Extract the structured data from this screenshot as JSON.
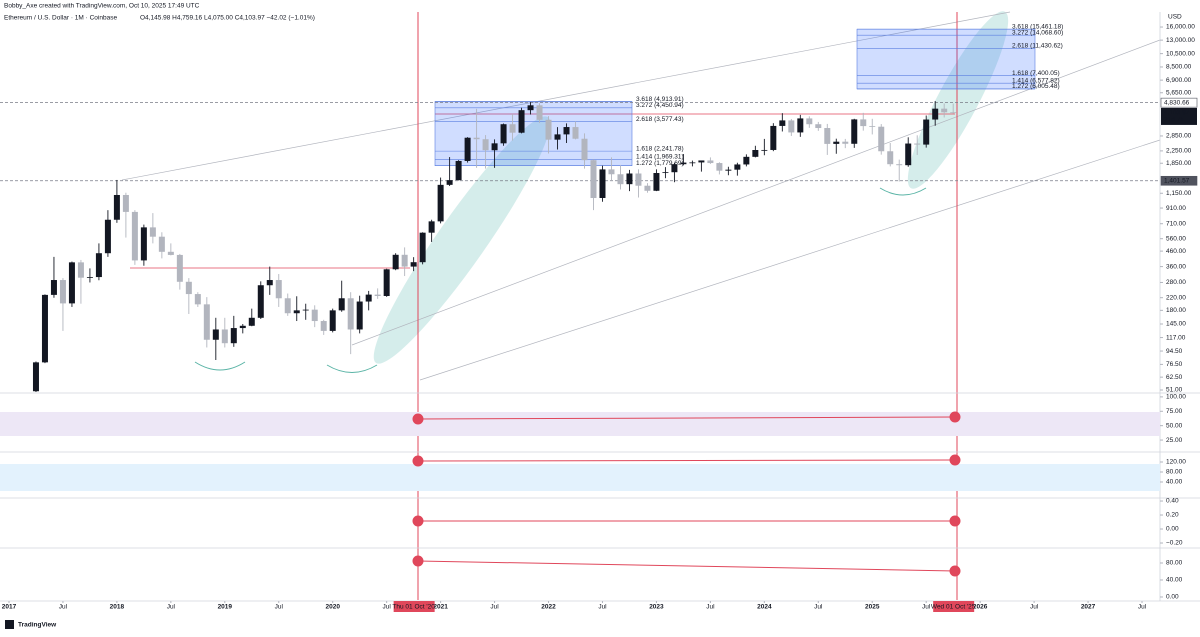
{
  "credit": "Bobby_Axe created with TradingView.com, Oct 10, 2025 17:49 UTC",
  "footer": "TradingView",
  "chart_data": {
    "type": "candlestick",
    "title": "Ethereum / U.S. Dollar · 1M · Coinbase",
    "subtitle": "O4,145.98 H4,759.16 L4,075.00 C4,103.97 −42.02 (−1.01%)",
    "y_unit": "USD",
    "log_scale": true,
    "up_color": "#131722",
    "down_color": "#b2b5be",
    "x": [
      "2017-04",
      "2017-05",
      "2017-06",
      "2017-07",
      "2017-08",
      "2017-09",
      "2017-10",
      "2017-11",
      "2017-12",
      "2018-01",
      "2018-02",
      "2018-03",
      "2018-04",
      "2018-05",
      "2018-06",
      "2018-07",
      "2018-08",
      "2018-09",
      "2018-10",
      "2018-11",
      "2018-12",
      "2019-01",
      "2019-02",
      "2019-03",
      "2019-04",
      "2019-05",
      "2019-06",
      "2019-07",
      "2019-08",
      "2019-09",
      "2019-10",
      "2019-11",
      "2019-12",
      "2020-01",
      "2020-02",
      "2020-03",
      "2020-04",
      "2020-05",
      "2020-06",
      "2020-07",
      "2020-08",
      "2020-09",
      "2020-10",
      "2020-11",
      "2020-12",
      "2021-01",
      "2021-02",
      "2021-03",
      "2021-04",
      "2021-05",
      "2021-06",
      "2021-07",
      "2021-08",
      "2021-09",
      "2021-10",
      "2021-11",
      "2021-12",
      "2022-01",
      "2022-02",
      "2022-03",
      "2022-04",
      "2022-05",
      "2022-06",
      "2022-07",
      "2022-08",
      "2022-09",
      "2022-10",
      "2022-11",
      "2022-12",
      "2023-01",
      "2023-02",
      "2023-03",
      "2023-04",
      "2023-05",
      "2023-06",
      "2023-07",
      "2023-08",
      "2023-09",
      "2023-10",
      "2023-11",
      "2023-12",
      "2024-01",
      "2024-02",
      "2024-03",
      "2024-04",
      "2024-05",
      "2024-06",
      "2024-07",
      "2024-08",
      "2024-09",
      "2024-10",
      "2024-11",
      "2024-12",
      "2025-01",
      "2025-02",
      "2025-03",
      "2025-04",
      "2025-05",
      "2025-06",
      "2025-07",
      "2025-08",
      "2025-09",
      "2025-10"
    ],
    "open": [
      50,
      79,
      230,
      291,
      201,
      385,
      302,
      305,
      445,
      756,
      1119,
      856,
      397,
      670,
      578,
      455,
      433,
      283,
      233,
      198,
      113,
      133,
      107,
      136,
      141,
      160,
      268,
      291,
      218,
      172,
      180,
      182,
      152,
      130,
      180,
      218,
      133,
      207,
      231,
      226,
      345,
      434,
      360,
      386,
      616,
      737,
      1314,
      1416,
      1918,
      2772,
      2707,
      2274,
      2536,
      3433,
      3001,
      4288,
      4632,
      3683,
      2688,
      2922,
      3282,
      2728,
      1942,
      1067,
      1678,
      1554,
      1328,
      1573,
      1296,
      1196,
      1585,
      1605,
      1822,
      1870,
      1874,
      1934,
      1856,
      1645,
      1671,
      1815,
      2048,
      2282,
      2283,
      3341,
      3646,
      3014,
      3763,
      3433,
      3232,
      2513,
      2603,
      2518,
      3705,
      3332,
      3300,
      2237,
      1822,
      1794,
      2528,
      2486,
      3697,
      4392,
      4145.98
    ],
    "high": [
      80,
      232,
      420,
      300,
      390,
      400,
      350,
      520,
      880,
      1420,
      1160,
      880,
      700,
      840,
      620,
      520,
      440,
      300,
      240,
      222,
      160,
      160,
      165,
      145,
      185,
      285,
      360,
      320,
      235,
      225,
      200,
      195,
      155,
      185,
      288,
      240,
      227,
      245,
      255,
      348,
      445,
      488,
      418,
      620,
      756,
      1475,
      2040,
      1943,
      2797,
      4380,
      2890,
      2700,
      3470,
      4030,
      4460,
      4870,
      4780,
      3900,
      3280,
      3480,
      3580,
      2970,
      1970,
      1780,
      2030,
      1790,
      1665,
      1680,
      1350,
      1680,
      1740,
      1860,
      2140,
      1930,
      1930,
      2030,
      1880,
      1750,
      1865,
      2130,
      2440,
      2720,
      3490,
      4090,
      3730,
      3980,
      3890,
      3560,
      3450,
      2730,
      2720,
      3740,
      4110,
      3740,
      3440,
      2550,
      1960,
      2790,
      2880,
      3940,
      4955,
      4770,
      4759.16
    ],
    "low": [
      48,
      78,
      220,
      130,
      190,
      200,
      280,
      290,
      420,
      720,
      570,
      370,
      365,
      520,
      410,
      430,
      250,
      170,
      190,
      100,
      82,
      100,
      101,
      125,
      140,
      157,
      230,
      190,
      165,
      152,
      155,
      138,
      122,
      127,
      176,
      90,
      125,
      180,
      216,
      223,
      340,
      310,
      335,
      373,
      532,
      714,
      1290,
      1410,
      1870,
      1720,
      1700,
      1720,
      2440,
      2650,
      2970,
      4000,
      3500,
      2160,
      2300,
      2550,
      2700,
      1700,
      880,
      1005,
      1420,
      1220,
      1190,
      1075,
      1160,
      1190,
      1460,
      1370,
      1790,
      1760,
      1620,
      1830,
      1550,
      1530,
      1520,
      1760,
      2030,
      2100,
      2240,
      3060,
      2850,
      2810,
      3240,
      3090,
      2110,
      2150,
      2350,
      2360,
      3100,
      2920,
      2120,
      1760,
      1385,
      1750,
      2110,
      2370,
      3350,
      3820,
      4075
    ],
    "close": [
      79,
      230,
      291,
      201,
      385,
      302,
      305,
      445,
      756,
      1119,
      856,
      397,
      670,
      578,
      455,
      433,
      283,
      233,
      198,
      113,
      133,
      107,
      136,
      141,
      160,
      268,
      291,
      218,
      172,
      180,
      182,
      152,
      130,
      180,
      218,
      133,
      207,
      231,
      226,
      345,
      434,
      360,
      386,
      616,
      737,
      1314,
      1416,
      1918,
      2772,
      2707,
      2274,
      2536,
      3433,
      3001,
      4288,
      4632,
      3683,
      2688,
      2922,
      3282,
      2728,
      1942,
      1067,
      1678,
      1554,
      1328,
      1573,
      1296,
      1196,
      1585,
      1605,
      1822,
      1870,
      1874,
      1934,
      1856,
      1645,
      1671,
      1815,
      2048,
      2282,
      2283,
      3341,
      3646,
      3014,
      3763,
      3433,
      3232,
      2513,
      2603,
      2518,
      3705,
      3332,
      3300,
      2237,
      1822,
      1794,
      2528,
      2486,
      3697,
      4392,
      4145.98,
      4103.97
    ],
    "xlim": [
      "2016-12",
      "2027-09"
    ],
    "xticks": [
      {
        "value": "2017-01",
        "label": "2017"
      },
      {
        "value": "2017-07",
        "label": "Jul"
      },
      {
        "value": "2018-01",
        "label": "2018"
      },
      {
        "value": "2018-07",
        "label": "Jul"
      },
      {
        "value": "2019-01",
        "label": "2019"
      },
      {
        "value": "2019-07",
        "label": "Jul"
      },
      {
        "value": "2020-01",
        "label": "2020"
      },
      {
        "value": "2020-07",
        "label": "Jul"
      },
      {
        "value": "2021-01",
        "label": "2021"
      },
      {
        "value": "2021-07",
        "label": "Jul"
      },
      {
        "value": "2022-01",
        "label": "2022"
      },
      {
        "value": "2022-07",
        "label": "Jul"
      },
      {
        "value": "2023-01",
        "label": "2023"
      },
      {
        "value": "2023-07",
        "label": "Jul"
      },
      {
        "value": "2024-01",
        "label": "2024"
      },
      {
        "value": "2024-07",
        "label": "Jul"
      },
      {
        "value": "2025-01",
        "label": "2025"
      },
      {
        "value": "2025-07",
        "label": "Jul"
      },
      {
        "value": "2026-01",
        "label": "2026"
      },
      {
        "value": "2026-07",
        "label": "Jul"
      },
      {
        "value": "2027-01",
        "label": "2027"
      },
      {
        "value": "2027-07",
        "label": "Jul"
      }
    ],
    "ylim": [
      49.4,
      20300
    ],
    "yticks": [
      {
        "value": 16000,
        "label": "16,000.00"
      },
      {
        "value": 13000,
        "label": "13,000.00"
      },
      {
        "value": 10500,
        "label": "10,500.00"
      },
      {
        "value": 8500,
        "label": "8,500.00"
      },
      {
        "value": 6900,
        "label": "6,900.00"
      },
      {
        "value": 5650,
        "label": "5,650.00"
      },
      {
        "value": 2850,
        "label": "2,850.00"
      },
      {
        "value": 2250,
        "label": "2,250.00"
      },
      {
        "value": 1850,
        "label": "1,850.00"
      },
      {
        "value": 1150,
        "label": "1,150.00"
      },
      {
        "value": 910,
        "label": "910.00"
      },
      {
        "value": 710,
        "label": "710.00"
      },
      {
        "value": 560,
        "label": "560.00"
      },
      {
        "value": 460,
        "label": "460.00"
      },
      {
        "value": 360,
        "label": "360.00"
      },
      {
        "value": 280,
        "label": "280.00"
      },
      {
        "value": 220,
        "label": "220.00"
      },
      {
        "value": 180,
        "label": "180.00"
      },
      {
        "value": 145,
        "label": "145.00"
      },
      {
        "value": 117,
        "label": "117.00"
      },
      {
        "value": 94.5,
        "label": "94.50"
      },
      {
        "value": 76.5,
        "label": "76.50"
      },
      {
        "value": 62.5,
        "label": "62.50"
      },
      {
        "value": 51,
        "label": "51.00"
      }
    ],
    "price_lines": [
      {
        "value": 4830.66,
        "label": "4,830.66"
      },
      {
        "value": 1401.57,
        "label": "1,401.57"
      }
    ],
    "last_price": {
      "value": 4103.97,
      "label": "4,103.97",
      "countdown": "21d 7h"
    },
    "fib_sets": [
      [
        {
          "value": 4913.91,
          "label": "3.618 (4,913.91)"
        },
        {
          "value": 4450.94,
          "label": "3.272 (4,450.94)"
        },
        {
          "value": 3577.43,
          "label": "2.618 (3,577.43)"
        },
        {
          "value": 2241.78,
          "label": "1.618 (2,241.78)"
        },
        {
          "value": 1969.31,
          "label": "1.414 (1,969.31)"
        },
        {
          "value": 1779.69,
          "label": "1.272 (1,779.69)"
        }
      ],
      [
        {
          "value": 15461.18,
          "label": "3.618 (15,461.18)"
        },
        {
          "value": 14068.6,
          "label": "3.272 (14,068.60)"
        },
        {
          "value": 11430.62,
          "label": "2.618 (11,430.62)"
        },
        {
          "value": 7400.05,
          "label": "1.618 (7,400.05)"
        },
        {
          "value": 6577.82,
          "label": "1.414 (6,577.82)"
        },
        {
          "value": 6005.48,
          "label": "1.272 (6,005.48)"
        }
      ]
    ],
    "markers": [
      {
        "x": "2020-10",
        "label": "Thu 01 Oct '20"
      },
      {
        "x": "2025-10",
        "label": "Wed 01 Oct '25"
      }
    ],
    "panes": [
      {
        "ylim": [
          6,
          105
        ],
        "yticks": [
          {
            "value": 100,
            "label": "100.00"
          },
          {
            "value": 75,
            "label": "75.00"
          },
          {
            "value": 50,
            "label": "50.00"
          },
          {
            "value": 25,
            "label": "25.00"
          }
        ]
      },
      {
        "ylim": [
          -20,
          156
        ],
        "yticks": [
          {
            "value": 120,
            "label": "120.00"
          },
          {
            "value": 80,
            "label": "80.00"
          },
          {
            "value": 40,
            "label": "40.00"
          }
        ]
      },
      {
        "ylim": [
          -0.257,
          0.429
        ],
        "yticks": [
          {
            "value": 0.4,
            "label": "0.40"
          },
          {
            "value": 0.2,
            "label": "0.20"
          },
          {
            "value": 0,
            "label": "0.00"
          },
          {
            "value": -0.2,
            "label": "−0.20"
          }
        ]
      },
      {
        "ylim": [
          -7.1,
          112.9
        ],
        "yticks": [
          {
            "value": 80,
            "label": "80.00"
          },
          {
            "value": 40,
            "label": "40.00"
          },
          {
            "value": 0,
            "label": "0.00"
          }
        ]
      }
    ]
  }
}
